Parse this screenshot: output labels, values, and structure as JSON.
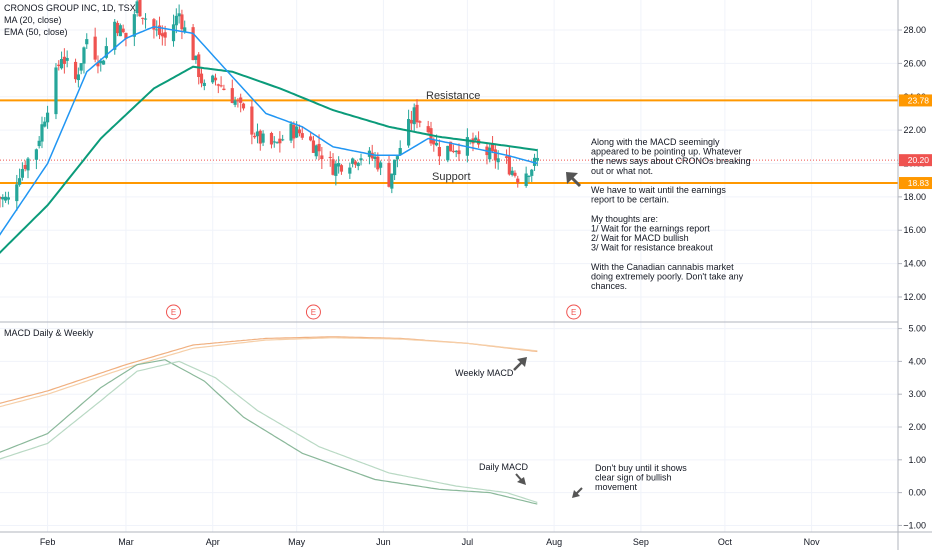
{
  "header": {
    "symbol_line": "CRONOS GROUP INC, 1D, TSX",
    "ma_label": "MA (20, close)",
    "ema_label": "EMA (50, close)",
    "macd_label": "MACD Daily & Weekly"
  },
  "annotations": {
    "resistance": "Resistance",
    "support": "Support",
    "weekly_macd": "Weekly MACD",
    "daily_macd": "Daily MACD",
    "note_lines": [
      "Along with the MACD seemingly",
      "appeared to be pointing up.  Whatever",
      "the news says about CRONOs breaking",
      "out or what not.",
      "",
      "We have to wait until the earnings",
      "report to be certain.",
      "",
      "My thoughts are:",
      "1/ Wait for the earnings report",
      "2/ Wait for MACD bullish",
      "3/ Wait for resistance breakout",
      "",
      "With the Canadian cannabis market",
      "doing extremely poorly.  Don't take any",
      "chances."
    ],
    "macd_note_lines": [
      "Don't buy until it shows",
      "clear sign of bullish",
      "movement"
    ],
    "earnings_marker": "E"
  },
  "colors": {
    "up": "#26a69a",
    "down": "#ef5350",
    "ma20": "#2196f3",
    "ema50": "#0b9b7a",
    "level": "#ff9800",
    "price_badge": "#ef5350",
    "weekly_macd": "#f0b080",
    "weekly_signal": "#f6cfa8",
    "daily_macd": "#8ab89a",
    "daily_signal": "#b9d9c4",
    "arrow": "#555555"
  },
  "chart_data": [
    {
      "type": "candlestick",
      "symbol": "CRONOS GROUP INC",
      "timeframe": "1D",
      "exchange": "TSX",
      "y_ticks": [
        12,
        14,
        16,
        18,
        20,
        22,
        24,
        26,
        28
      ],
      "ylim": [
        10.5,
        29.8
      ],
      "x_ticks": [
        "Feb",
        "Mar",
        "Apr",
        "May",
        "Jun",
        "Jul",
        "Aug",
        "Sep",
        "Oct",
        "Nov"
      ],
      "levels": [
        {
          "label": "Resistance",
          "value": 23.78
        },
        {
          "label": "Support",
          "value": 18.83
        }
      ],
      "last_price": 20.2,
      "earnings_dates": [
        "Mar",
        "May",
        "Aug"
      ],
      "series": [
        {
          "name": "MA (20, close)"
        },
        {
          "name": "EMA (50, close)"
        }
      ],
      "close_path": [
        [
          "Jan 14",
          18.0
        ],
        [
          "Jan 18",
          17.8
        ],
        [
          "Jan 22",
          19.5
        ],
        [
          "Jan 28",
          21.0
        ],
        [
          "Feb 1",
          23.5
        ],
        [
          "Feb 6",
          26.5
        ],
        [
          "Feb 11",
          25.0
        ],
        [
          "Feb 15",
          27.5
        ],
        [
          "Feb 20",
          26.0
        ],
        [
          "Feb 25",
          28.5
        ],
        [
          "Mar 1",
          27.5
        ],
        [
          "Mar 5",
          29.5
        ],
        [
          "Mar 11",
          28.0
        ],
        [
          "Mar 15",
          27.5
        ],
        [
          "Mar 20",
          29.0
        ],
        [
          "Mar 25",
          26.5
        ],
        [
          "Mar 29",
          24.5
        ],
        [
          "Apr 2",
          25.0
        ],
        [
          "Apr 8",
          24.0
        ],
        [
          "Apr 12",
          23.0
        ],
        [
          "Apr 17",
          21.5
        ],
        [
          "Apr 23",
          21.0
        ],
        [
          "Apr 29",
          22.0
        ],
        [
          "May 3",
          21.8
        ],
        [
          "May 9",
          20.8
        ],
        [
          "May 14",
          19.8
        ],
        [
          "May 20",
          20.2
        ],
        [
          "May 24",
          20.5
        ],
        [
          "May 29",
          20.3
        ],
        [
          "Jun 3",
          19.0
        ],
        [
          "Jun 7",
          21.0
        ],
        [
          "Jun 12",
          23.0
        ],
        [
          "Jun 17",
          22.0
        ],
        [
          "Jun 21",
          20.8
        ],
        [
          "Jun 27",
          21.0
        ],
        [
          "Jul 3",
          21.2
        ],
        [
          "Jul 9",
          20.5
        ],
        [
          "Jul 15",
          20.0
        ],
        [
          "Jul 19",
          19.2
        ],
        [
          "Jul 24",
          19.8
        ],
        [
          "Jul 26",
          20.2
        ]
      ],
      "ma20_path": [
        [
          "Jan 14",
          15.5
        ],
        [
          "Feb 1",
          20.0
        ],
        [
          "Feb 15",
          25.5
        ],
        [
          "Mar 1",
          27.5
        ],
        [
          "Mar 11",
          28.2
        ],
        [
          "Mar 25",
          27.8
        ],
        [
          "Apr 8",
          25.2
        ],
        [
          "Apr 20",
          23.0
        ],
        [
          "May 3",
          22.2
        ],
        [
          "May 14",
          21.0
        ],
        [
          "May 29",
          20.5
        ],
        [
          "Jun 7",
          20.5
        ],
        [
          "Jun 17",
          21.5
        ],
        [
          "Jul 1",
          21.0
        ],
        [
          "Jul 15",
          20.5
        ],
        [
          "Jul 26",
          20.0
        ]
      ],
      "ema50_path": [
        [
          "Jan 14",
          14.5
        ],
        [
          "Feb 1",
          17.5
        ],
        [
          "Feb 20",
          21.5
        ],
        [
          "Mar 11",
          24.5
        ],
        [
          "Mar 25",
          25.8
        ],
        [
          "Apr 8",
          25.5
        ],
        [
          "Apr 25",
          24.5
        ],
        [
          "May 14",
          23.2
        ],
        [
          "Jun 3",
          22.2
        ],
        [
          "Jun 21",
          21.6
        ],
        [
          "Jul 9",
          21.2
        ],
        [
          "Jul 26",
          20.8
        ]
      ]
    },
    {
      "type": "line",
      "title": "MACD Daily & Weekly",
      "y_ticks": [
        -1.0,
        0.0,
        1.0,
        2.0,
        3.0,
        4.0,
        5.0
      ],
      "ylim": [
        -1.2,
        5.2
      ],
      "x_ticks": [
        "Feb",
        "Mar",
        "Apr",
        "May",
        "Jun",
        "Jul",
        "Aug",
        "Sep",
        "Oct",
        "Nov"
      ],
      "series": [
        {
          "name": "Weekly MACD",
          "points": [
            [
              "Jan 14",
              2.7
            ],
            [
              "Feb 1",
              3.1
            ],
            [
              "Mar 1",
              3.9
            ],
            [
              "Mar 25",
              4.5
            ],
            [
              "Apr 20",
              4.7
            ],
            [
              "May 14",
              4.75
            ],
            [
              "Jun 7",
              4.7
            ],
            [
              "Jul 1",
              4.55
            ],
            [
              "Jul 26",
              4.3
            ]
          ]
        },
        {
          "name": "",
          "points": [
            [
              "Jan 14",
              2.6
            ],
            [
              "Feb 1",
              3.0
            ],
            [
              "Mar 1",
              3.8
            ],
            [
              "Mar 25",
              4.4
            ],
            [
              "Apr 20",
              4.65
            ],
            [
              "May 14",
              4.72
            ],
            [
              "Jun 7",
              4.68
            ],
            [
              "Jul 1",
              4.55
            ],
            [
              "Jul 26",
              4.32
            ]
          ]
        },
        {
          "name": "Daily MACD",
          "points": [
            [
              "Jan 14",
              1.2
            ],
            [
              "Feb 1",
              1.8
            ],
            [
              "Feb 20",
              3.2
            ],
            [
              "Mar 5",
              3.9
            ],
            [
              "Mar 15",
              4.05
            ],
            [
              "Mar 29",
              3.4
            ],
            [
              "Apr 12",
              2.3
            ],
            [
              "May 3",
              1.2
            ],
            [
              "May 29",
              0.4
            ],
            [
              "Jun 21",
              0.1
            ],
            [
              "Jul 9",
              0.0
            ],
            [
              "Jul 26",
              -0.35
            ]
          ]
        },
        {
          "name": "",
          "points": [
            [
              "Jan 14",
              1.0
            ],
            [
              "Feb 1",
              1.5
            ],
            [
              "Feb 20",
              2.8
            ],
            [
              "Mar 5",
              3.7
            ],
            [
              "Mar 20",
              4.0
            ],
            [
              "Apr 2",
              3.5
            ],
            [
              "Apr 17",
              2.5
            ],
            [
              "May 9",
              1.4
            ],
            [
              "Jun 3",
              0.6
            ],
            [
              "Jun 27",
              0.2
            ],
            [
              "Jul 15",
              0.0
            ],
            [
              "Jul 26",
              -0.3
            ]
          ]
        }
      ]
    }
  ]
}
